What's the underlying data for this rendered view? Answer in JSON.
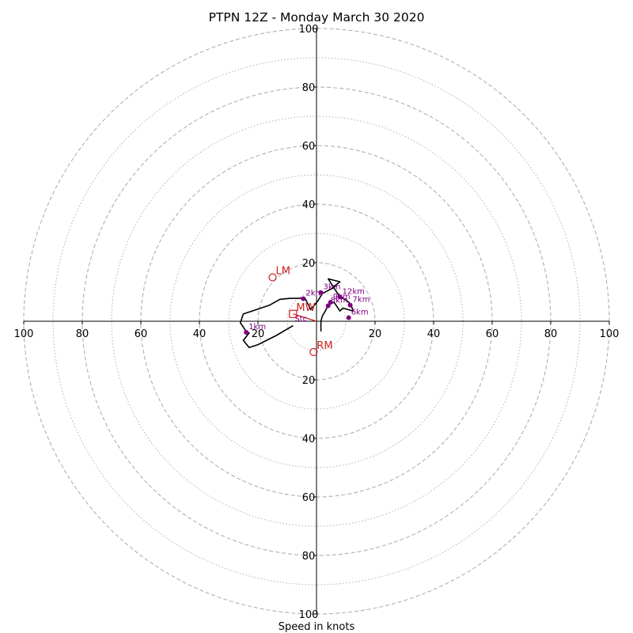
{
  "chart_data": {
    "type": "scatter",
    "title": "PTPN 12Z - Monday March 30 2020",
    "xlabel": "Speed in knots",
    "ylabel": "",
    "xlim": [
      -100,
      100
    ],
    "ylim": [
      -100,
      100
    ],
    "rings_dashed": [
      20,
      40,
      60,
      80,
      100
    ],
    "rings_dotted": [
      10,
      30,
      50,
      70,
      90
    ],
    "x_tick_labels": [
      "100",
      "80",
      "60",
      "40",
      "20",
      "20",
      "40",
      "60",
      "80",
      "100"
    ],
    "x_tick_values": [
      -100,
      -80,
      -60,
      -40,
      -20,
      20,
      40,
      60,
      80,
      100
    ],
    "y_tick_labels": [
      "100",
      "80",
      "60",
      "40",
      "20",
      "20",
      "40",
      "60",
      "80",
      "100"
    ],
    "y_tick_values": [
      100,
      80,
      60,
      40,
      20,
      -20,
      -40,
      -60,
      -80,
      -100
    ],
    "grid": true,
    "colors": {
      "hodograph": "#000000",
      "height_markers": "#800080",
      "storm_motion": "#cc1f1f",
      "rings": "#b0b0b0"
    },
    "hodograph": [
      [
        -8,
        -1.5
      ],
      [
        -14,
        -5
      ],
      [
        -18,
        -7
      ],
      [
        -20,
        -8
      ],
      [
        -23,
        -9
      ],
      [
        -25,
        -6.5
      ],
      [
        -23,
        -4
      ],
      [
        -24,
        -3.5
      ],
      [
        -26,
        -0.5
      ],
      [
        -25,
        2.5
      ],
      [
        -22,
        3.5
      ],
      [
        -16,
        5.5
      ],
      [
        -12.5,
        7.5
      ],
      [
        -9,
        7.8
      ],
      [
        -6,
        7.8
      ],
      [
        -4,
        8
      ],
      [
        -2,
        4
      ],
      [
        0.5,
        7
      ],
      [
        2,
        9.5
      ],
      [
        4,
        10.5
      ],
      [
        6,
        11.5
      ],
      [
        6.5,
        12
      ],
      [
        5.5,
        11.5
      ],
      [
        8,
        13.5
      ],
      [
        4,
        14.5
      ],
      [
        7.5,
        9
      ],
      [
        11,
        6.5
      ],
      [
        12,
        5
      ],
      [
        12.5,
        3.5
      ],
      [
        9,
        4.5
      ],
      [
        8,
        3.5
      ],
      [
        6,
        6.5
      ],
      [
        4,
        5.5
      ],
      [
        3,
        3.5
      ],
      [
        2,
        1.8
      ],
      [
        1.5,
        0
      ],
      [
        1.5,
        -3.5
      ]
    ],
    "height_markers": [
      {
        "label": "1km",
        "u": -24,
        "v": -3.8
      },
      {
        "label": "2km",
        "u": -4.5,
        "v": 7.7
      },
      {
        "label": "3km",
        "u": 1.5,
        "v": 9.8
      },
      {
        "label": "6km",
        "u": 11,
        "v": 1.2
      },
      {
        "label": "7km",
        "u": 11.5,
        "v": 5.5
      },
      {
        "label": "8km",
        "u": 4,
        "v": 5.3
      },
      {
        "label": "9km",
        "u": 4.8,
        "v": 6.5
      },
      {
        "label": "12km",
        "u": 8,
        "v": 8.3
      }
    ],
    "storm_motion": [
      {
        "label": "LM",
        "u": -15,
        "v": 15,
        "marker": "circle"
      },
      {
        "label": "RM",
        "u": -1,
        "v": -10.5,
        "marker": "circle"
      },
      {
        "label": "MW",
        "u": -8,
        "v": 2.5,
        "marker": "square"
      }
    ],
    "storm_vector_label": "Stc"
  }
}
